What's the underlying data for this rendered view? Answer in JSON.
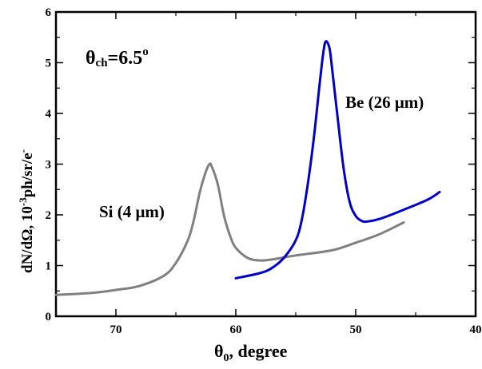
{
  "chart_data": {
    "type": "line",
    "title": "",
    "annotation": {
      "main": "θ",
      "sub": "ch",
      "rest": "=6.5",
      "sup": "o"
    },
    "xlabel": {
      "main": "θ",
      "sub": "0",
      "rest": ", degree"
    },
    "ylabel": {
      "main": "dN/dΩ, 10",
      "sup": "-3",
      "mid": "ph/sr/e",
      "sup2": "-"
    },
    "xlim": [
      75,
      40
    ],
    "ylim": [
      0,
      6
    ],
    "x_ticks": [
      70,
      60,
      50,
      40
    ],
    "y_ticks": [
      0,
      1,
      2,
      3,
      4,
      5,
      6
    ],
    "grid": false,
    "series": [
      {
        "name": "Si (4 μm)",
        "color": "#808080",
        "x": [
          75,
          72,
          70,
          68,
          66,
          65,
          64,
          63.5,
          63,
          62.5,
          62.2,
          62,
          61.5,
          61,
          60.5,
          60,
          59,
          58,
          57,
          55,
          52,
          50,
          48,
          46
        ],
        "y": [
          0.42,
          0.46,
          0.52,
          0.6,
          0.8,
          1.05,
          1.5,
          1.9,
          2.45,
          2.85,
          3.0,
          2.95,
          2.6,
          2.0,
          1.6,
          1.35,
          1.15,
          1.1,
          1.12,
          1.2,
          1.3,
          1.45,
          1.62,
          1.85
        ]
      },
      {
        "name": "Be (26 μm)",
        "color": "#0000c8",
        "x": [
          60,
          58,
          57,
          56,
          55,
          54.5,
          54,
          53.5,
          53,
          52.7,
          52.5,
          52.2,
          52,
          51.5,
          51,
          50.5,
          50,
          49.5,
          49,
          48,
          46,
          44,
          43
        ],
        "y": [
          0.75,
          0.85,
          0.95,
          1.15,
          1.5,
          1.9,
          2.6,
          3.5,
          4.6,
          5.2,
          5.42,
          5.3,
          4.95,
          3.9,
          2.9,
          2.25,
          1.98,
          1.88,
          1.87,
          1.92,
          2.1,
          2.3,
          2.45
        ]
      }
    ],
    "labels": [
      {
        "text": "Si (4 μm)",
        "color": "#808080"
      },
      {
        "text": "Be (26 μm)",
        "color": "#1a5ad6"
      }
    ]
  }
}
